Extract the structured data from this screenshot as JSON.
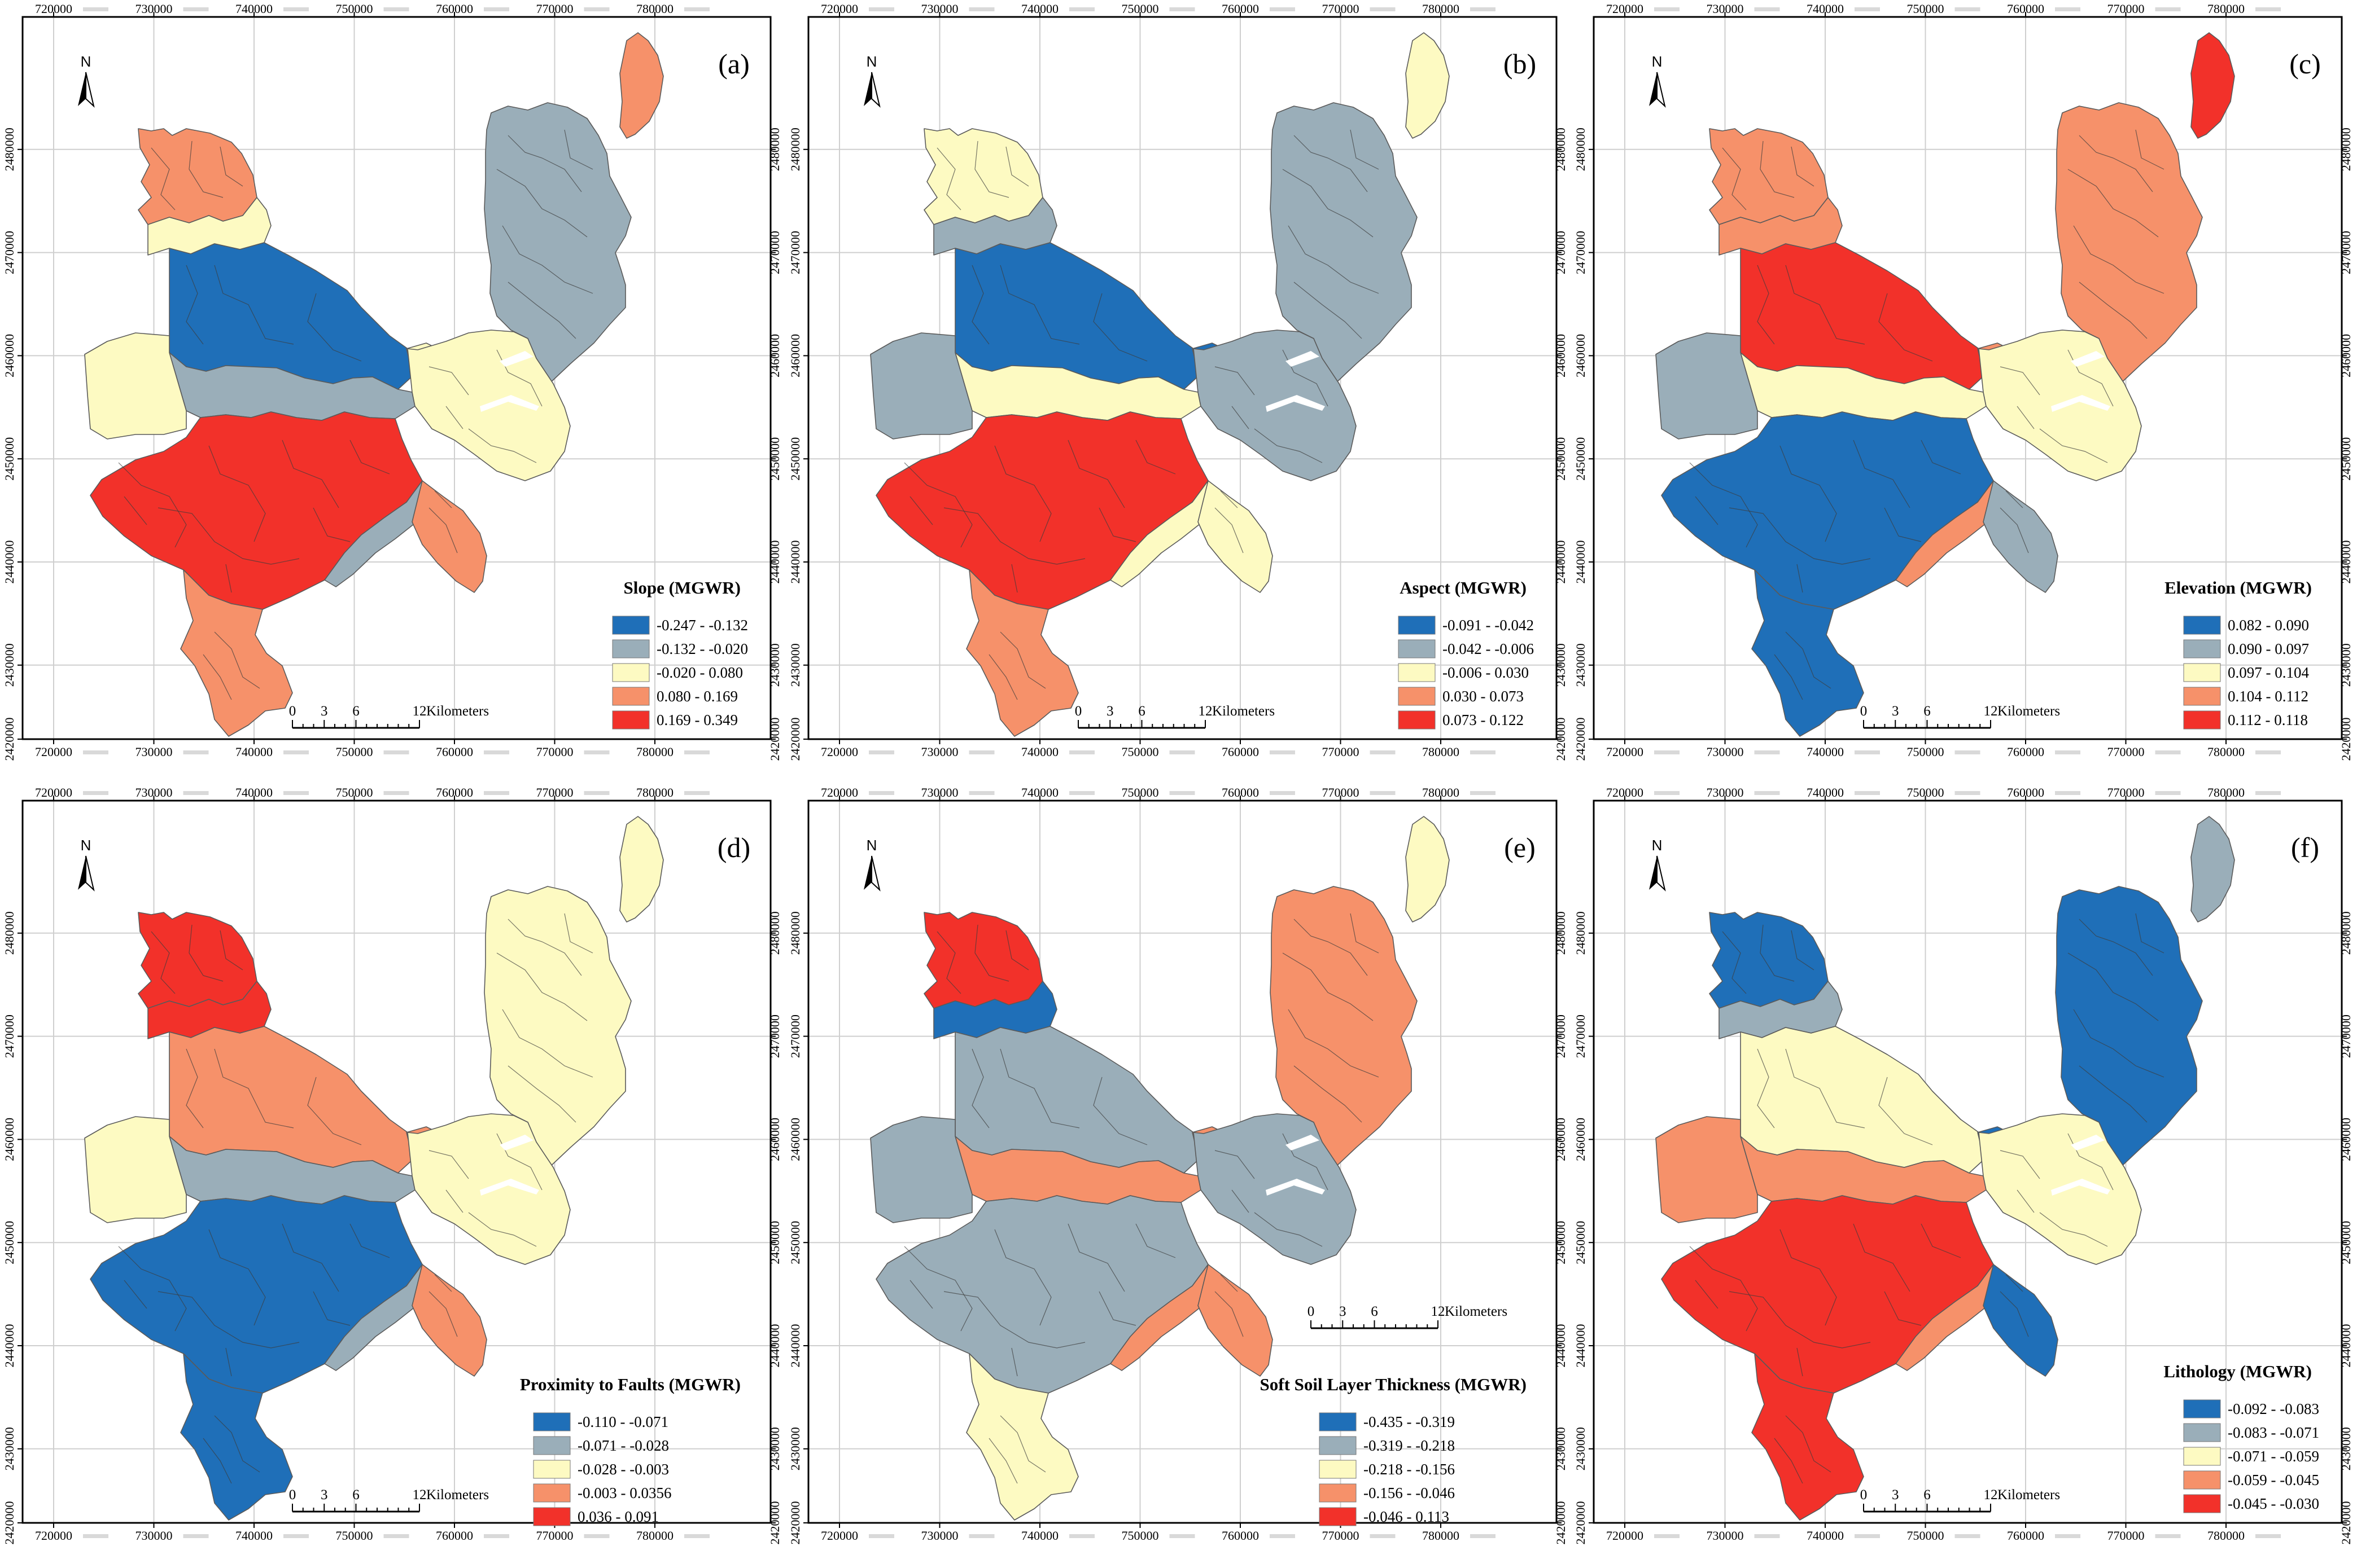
{
  "map_colors": {
    "class1": "#1f6fb8",
    "class2": "#9aaeb9",
    "class3": "#fdfac2",
    "class4": "#f6916a",
    "class5": "#f2312a"
  },
  "x_ticks": [
    "720000",
    "730000",
    "740000",
    "750000",
    "760000",
    "770000",
    "780000"
  ],
  "y_ticks": [
    "2480000",
    "2470000",
    "2460000",
    "2450000",
    "2440000",
    "2430000",
    "2420000"
  ],
  "north_label": "N",
  "scalebar": {
    "ticks": [
      "0",
      "3",
      "6",
      "12"
    ],
    "unit": "Kilometers"
  },
  "panels": [
    {
      "tag": "(a)",
      "legend_title": "Slope (MGWR)",
      "classes": [
        "-0.247 - -0.132",
        "-0.132 - -0.020",
        "-0.020 - 0.080",
        "0.080 - 0.169",
        "0.169 - 0.349"
      ],
      "zone_classes": [
        4,
        3,
        1,
        2,
        3,
        5,
        4,
        2,
        3,
        2,
        4,
        3,
        4
      ]
    },
    {
      "tag": "(b)",
      "legend_title": "Aspect (MGWR)",
      "classes": [
        "-0.091 - -0.042",
        "-0.042 - -0.006",
        "-0.006 - 0.030",
        "0.030 - 0.073",
        "0.073 - 0.122"
      ],
      "zone_classes": [
        3,
        2,
        1,
        3,
        2,
        5,
        4,
        3,
        1,
        2,
        3,
        2,
        3
      ]
    },
    {
      "tag": "(c)",
      "legend_title": "Elevation (MGWR)",
      "classes": [
        "0.082 - 0.090",
        "0.090 - 0.097",
        "0.097 - 0.104",
        "0.104 - 0.112",
        "0.112 - 0.118"
      ],
      "zone_classes": [
        4,
        4,
        5,
        3,
        2,
        1,
        1,
        4,
        4,
        4,
        5,
        3,
        2
      ]
    },
    {
      "tag": "(d)",
      "legend_title": "Proximity to Faults (MGWR)",
      "classes": [
        "-0.110 - -0.071",
        "-0.071 - -0.028",
        "-0.028 - -0.003",
        "-0.003 - 0.0356",
        "0.036 - 0.091"
      ],
      "zone_classes": [
        5,
        5,
        4,
        2,
        3,
        1,
        1,
        2,
        4,
        3,
        3,
        3,
        4
      ]
    },
    {
      "tag": "(e)",
      "legend_title": "Soft Soil Layer Thickness (MGWR)",
      "classes": [
        "-0.435 - -0.319",
        "-0.319 - -0.218",
        "-0.218 - -0.156",
        "-0.156 - -0.046",
        "-0.046 - 0.113"
      ],
      "zone_classes": [
        5,
        1,
        2,
        4,
        2,
        2,
        3,
        4,
        4,
        4,
        3,
        2,
        4
      ]
    },
    {
      "tag": "(f)",
      "legend_title": "Lithology (MGWR)",
      "classes": [
        "-0.092 - -0.083",
        "-0.083 - -0.071",
        "-0.071 - -0.059",
        "-0.059 - -0.045",
        "-0.045 - -0.030"
      ],
      "zone_classes": [
        1,
        2,
        3,
        4,
        4,
        5,
        5,
        4,
        1,
        1,
        2,
        3,
        1
      ]
    }
  ]
}
